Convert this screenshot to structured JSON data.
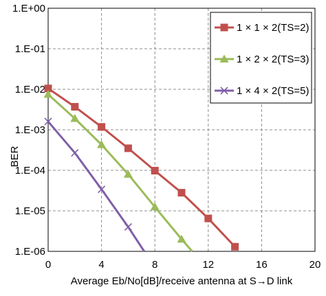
{
  "chart_data": {
    "type": "line",
    "xlabel": "Average Eb/No[dB]/receive antenna at S→D link",
    "ylabel": "BER",
    "xlim": [
      0,
      20
    ],
    "ylim": [
      1e-06,
      1
    ],
    "yscale": "log",
    "x_ticks": [
      "0",
      "4",
      "8",
      "12",
      "16",
      "20"
    ],
    "y_ticks": [
      "1.E+00",
      "1.E-01",
      "1.E-02",
      "1.E-03",
      "1.E-04",
      "1.E-05",
      "1.E-06"
    ],
    "grid": true,
    "legend_position": "top-right",
    "series": [
      {
        "name": "1 × 1 × 2(TS=2)",
        "color": "#c0504d",
        "marker": "square",
        "x": [
          0,
          2,
          4,
          6,
          8,
          10,
          12,
          14
        ],
        "y": [
          0.0105,
          0.0037,
          0.00118,
          0.00035,
          9.8e-05,
          2.8e-05,
          6.5e-06,
          1.3e-06
        ]
      },
      {
        "name": "1 × 2 × 2(TS=3)",
        "color": "#9bbb59",
        "marker": "triangle",
        "x": [
          0,
          2,
          4,
          6,
          8,
          10,
          10.8
        ],
        "y": [
          0.0075,
          0.0019,
          0.00043,
          8e-05,
          1.25e-05,
          2e-06,
          1e-06
        ]
      },
      {
        "name": "1 × 4 × 2(TS=5)",
        "color": "#7f5fa8",
        "marker": "x",
        "x": [
          0,
          2,
          4,
          6,
          7.2
        ],
        "y": [
          0.0016,
          0.00027,
          3.4e-05,
          4e-06,
          1e-06
        ]
      }
    ]
  }
}
